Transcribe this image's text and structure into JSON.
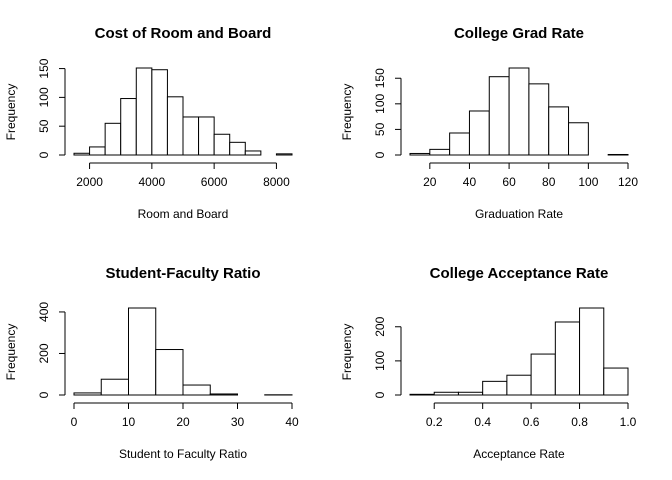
{
  "chart_data": [
    {
      "type": "histogram",
      "title": "Cost of Room and Board",
      "xlabel": "Room and Board",
      "ylabel": "Frequency",
      "bins": [
        1500,
        2000,
        2500,
        3000,
        3500,
        4000,
        4500,
        5000,
        5500,
        6000,
        6500,
        7000,
        7500,
        8000,
        8500
      ],
      "values": [
        3,
        14,
        55,
        98,
        151,
        148,
        101,
        66,
        66,
        36,
        22,
        7,
        0,
        2
      ],
      "xlim": [
        1500,
        8500
      ],
      "xticks": [
        2000,
        4000,
        6000,
        8000
      ],
      "ylim": [
        0,
        151
      ],
      "yticks": [
        0,
        50,
        100,
        150
      ],
      "color": "#ffffff"
    },
    {
      "type": "histogram",
      "title": "College Grad Rate",
      "xlabel": "Graduation Rate",
      "ylabel": "Frequency",
      "bins": [
        10,
        20,
        30,
        40,
        50,
        60,
        70,
        80,
        90,
        100,
        110,
        120
      ],
      "values": [
        3,
        11,
        43,
        86,
        153,
        170,
        139,
        94,
        63,
        0,
        1
      ],
      "xlim": [
        10,
        120
      ],
      "xticks": [
        20,
        40,
        60,
        80,
        100,
        120
      ],
      "ylim": [
        0,
        170
      ],
      "yticks": [
        0,
        50,
        100,
        150
      ],
      "color": "#ffffff"
    },
    {
      "type": "histogram",
      "title": "Student-Faculty Ratio",
      "xlabel": "Student to Faculty Ratio",
      "ylabel": "Frequency",
      "bins": [
        0,
        5,
        10,
        15,
        20,
        25,
        30,
        35,
        40
      ],
      "values": [
        10,
        76,
        419,
        219,
        48,
        5,
        0,
        1
      ],
      "xlim": [
        0,
        40
      ],
      "xticks": [
        0,
        10,
        20,
        30,
        40
      ],
      "ylim": [
        0,
        419
      ],
      "yticks": [
        0,
        200,
        400
      ],
      "color": "#ffffff"
    },
    {
      "type": "histogram",
      "title": "College Acceptance Rate",
      "xlabel": "Acceptance Rate",
      "ylabel": "Frequency",
      "bins": [
        0.1,
        0.2,
        0.3,
        0.4,
        0.5,
        0.6,
        0.7,
        0.8,
        0.9,
        1.0
      ],
      "values": [
        2,
        8,
        8,
        40,
        58,
        120,
        214,
        255,
        79
      ],
      "xlim": [
        0.1,
        1.0
      ],
      "xticks": [
        0.2,
        0.4,
        0.6,
        0.8,
        {
          "value": 1,
          "label": "1.0"
        }
      ],
      "ylim": [
        0,
        255
      ],
      "yticks": [
        0,
        100,
        200
      ],
      "color": "#ffffff"
    }
  ]
}
